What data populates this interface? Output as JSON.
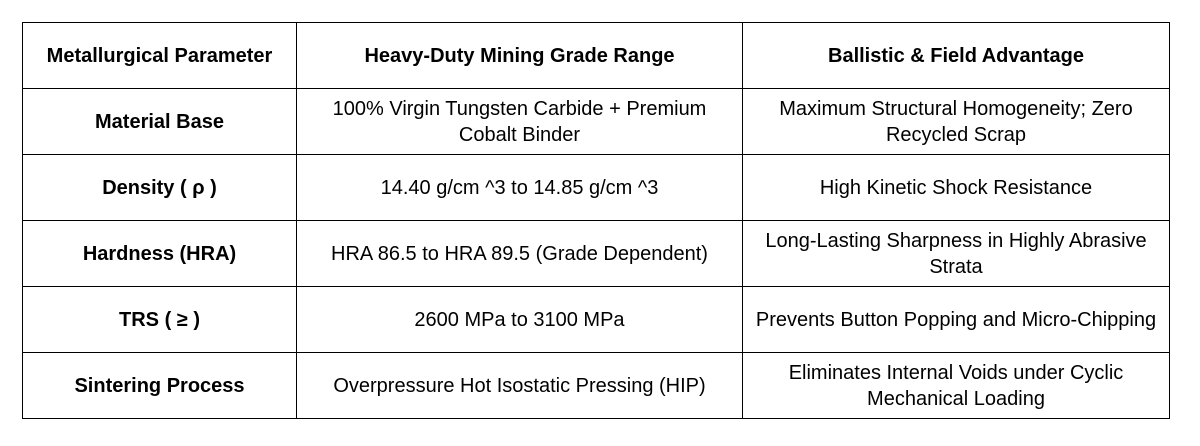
{
  "table": {
    "headers": [
      "Metallurgical Parameter",
      "Heavy-Duty Mining Grade Range",
      "Ballistic & Field Advantage"
    ],
    "rows": [
      {
        "parameter": "Material Base",
        "range": "100% Virgin Tungsten Carbide + Premium Cobalt Binder",
        "advantage": "Maximum Structural Homogeneity; Zero Recycled Scrap"
      },
      {
        "parameter": "Density ( ρ )",
        "range": "14.40  g/cm ^3 to 14.85  g/cm ^3",
        "advantage": "High Kinetic Shock Resistance"
      },
      {
        "parameter": "Hardness (HRA)",
        "range": "HRA 86.5 to HRA 89.5 (Grade Dependent)",
        "advantage": "Long-Lasting Sharpness in Highly Abrasive Strata"
      },
      {
        "parameter": "TRS ( ≥ )",
        "range": "2600  MPa to 3100  MPa",
        "advantage": "Prevents Button Popping and Micro-Chipping"
      },
      {
        "parameter": "Sintering Process",
        "range": "Overpressure Hot Isostatic Pressing (HIP)",
        "advantage": "Eliminates Internal Voids under Cyclic Mechanical Loading"
      }
    ]
  }
}
